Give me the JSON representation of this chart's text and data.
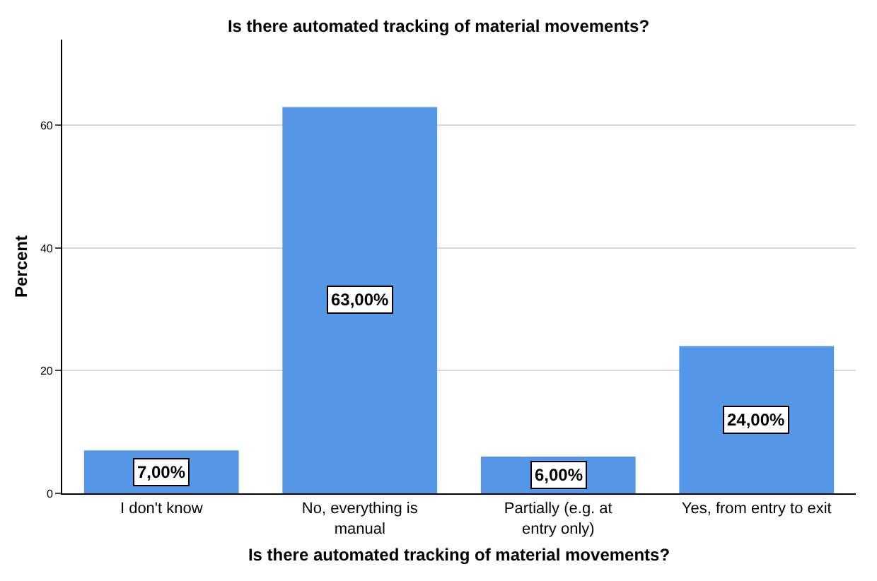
{
  "chart_data": {
    "type": "bar",
    "title": "Is there automated tracking of material movements?",
    "xlabel": "Is there automated tracking of material movements?",
    "ylabel": "Percent",
    "categories": [
      "I don't know",
      "No, everything is manual",
      "Partially (e.g. at entry only)",
      "Yes, from entry to exit"
    ],
    "values": [
      7,
      63,
      6,
      24
    ],
    "value_labels": [
      "7,00%",
      "63,00%",
      "6,00%",
      "24,00%"
    ],
    "color": "#5596e6",
    "ylim": [
      0,
      74
    ],
    "yticks": [
      0,
      20,
      40,
      60
    ],
    "grid": "y"
  }
}
